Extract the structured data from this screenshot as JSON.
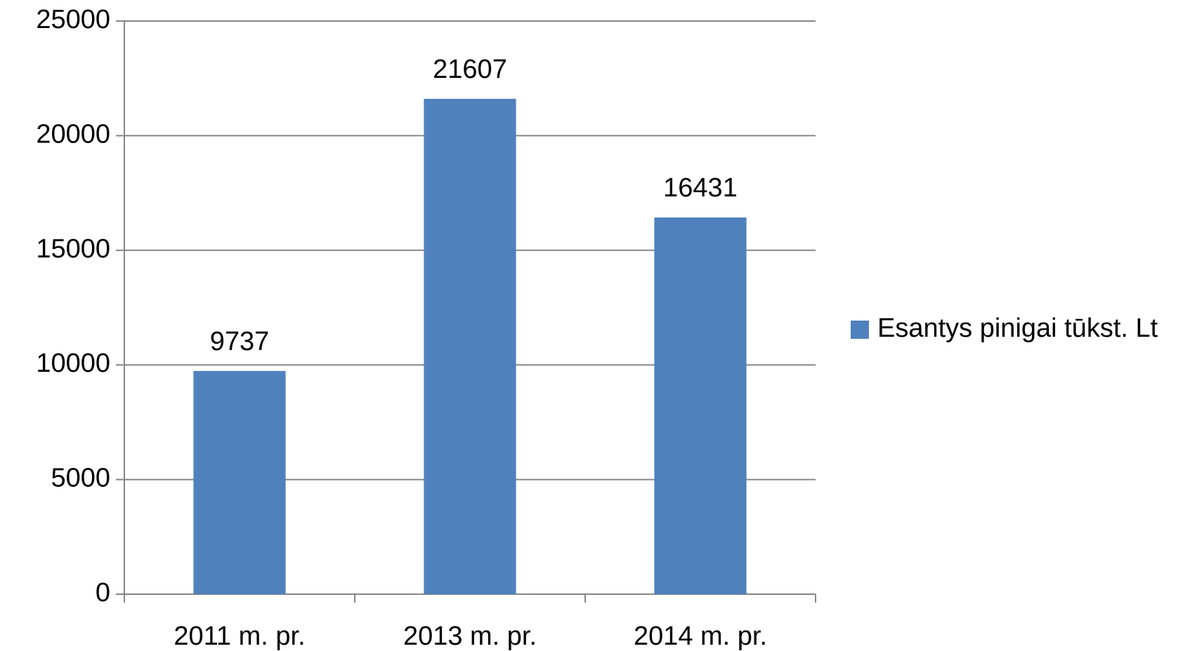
{
  "chart_data": {
    "type": "bar",
    "categories": [
      "2011 m. pr.",
      "2013 m. pr.",
      "2014 m. pr."
    ],
    "series": [
      {
        "name": "Esantys pinigai tūkst. Lt",
        "color": "#4f81bd",
        "values": [
          9737,
          21607,
          16431
        ]
      }
    ],
    "ylim": [
      0,
      25000
    ],
    "yticks": [
      0,
      5000,
      10000,
      15000,
      20000,
      25000
    ],
    "grid": true,
    "legend": "right"
  }
}
